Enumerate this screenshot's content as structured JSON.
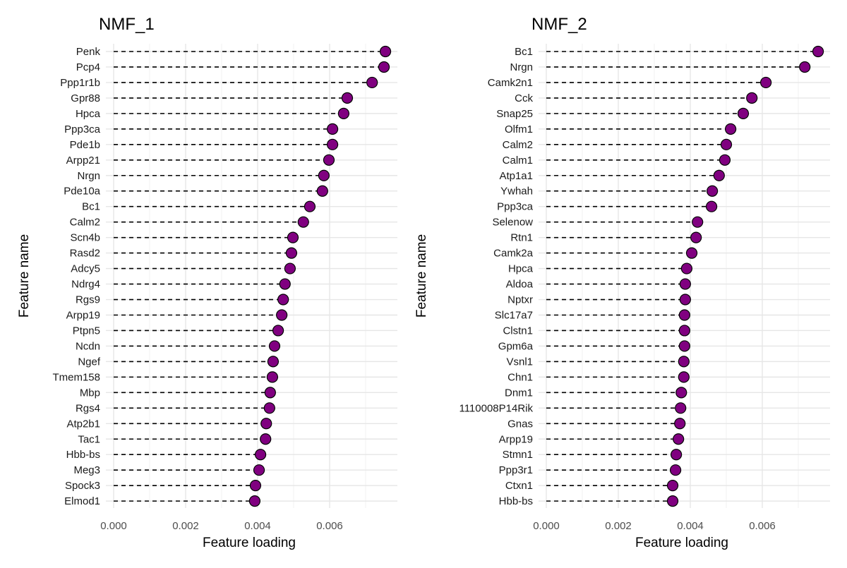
{
  "chart_data": [
    {
      "type": "scatter",
      "title": "NMF_1",
      "xlabel": "Feature loading",
      "ylabel": "Feature name",
      "xlim": [
        0,
        0.0078
      ],
      "xticks": [
        "0.000",
        "0.002",
        "0.004",
        "0.006"
      ],
      "grid": true,
      "point_color": "#800080",
      "categories": [
        "Penk",
        "Pcp4",
        "Ppp1r1b",
        "Gpr88",
        "Hpca",
        "Ppp3ca",
        "Pde1b",
        "Arpp21",
        "Nrgn",
        "Pde10a",
        "Bc1",
        "Calm2",
        "Scn4b",
        "Rasd2",
        "Adcy5",
        "Ndrg4",
        "Rgs9",
        "Arpp19",
        "Ptpn5",
        "Ncdn",
        "Ngef",
        "Tmem158",
        "Mbp",
        "Rgs4",
        "Atp2b1",
        "Tac1",
        "Hbb-bs",
        "Meg3",
        "Spock3",
        "Elmod1"
      ],
      "values": [
        0.00755,
        0.00751,
        0.00718,
        0.00649,
        0.00639,
        0.00608,
        0.00608,
        0.00598,
        0.00584,
        0.0058,
        0.00545,
        0.00527,
        0.00498,
        0.00494,
        0.0049,
        0.00476,
        0.00471,
        0.00467,
        0.00457,
        0.00447,
        0.00443,
        0.00441,
        0.00435,
        0.00433,
        0.00424,
        0.00422,
        0.00408,
        0.00404,
        0.00394,
        0.00392
      ]
    },
    {
      "type": "scatter",
      "title": "NMF_2",
      "xlabel": "Feature loading",
      "ylabel": "Feature name",
      "xlim": [
        0,
        0.0078
      ],
      "xticks": [
        "0.000",
        "0.002",
        "0.004",
        "0.006"
      ],
      "grid": true,
      "point_color": "#800080",
      "categories": [
        "Bc1",
        "Nrgn",
        "Camk2n1",
        "Cck",
        "Snap25",
        "Olfm1",
        "Calm2",
        "Calm1",
        "Atp1a1",
        "Ywhah",
        "Ppp3ca",
        "Selenow",
        "Rtn1",
        "Camk2a",
        "Hpca",
        "Aldoa",
        "Nptxr",
        "Slc17a7",
        "Clstn1",
        "Gpm6a",
        "Vsnl1",
        "Chn1",
        "Dnm1",
        "1110008P14Rik",
        "Gnas",
        "Arpp19",
        "Stmn1",
        "Ppp3r1",
        "Ctxn1",
        "Hbb-bs"
      ],
      "values": [
        0.00755,
        0.00718,
        0.0061,
        0.00571,
        0.00547,
        0.00512,
        0.005,
        0.00496,
        0.0048,
        0.00461,
        0.00459,
        0.0042,
        0.00416,
        0.00404,
        0.0039,
        0.00386,
        0.00386,
        0.00384,
        0.00384,
        0.00384,
        0.00382,
        0.00382,
        0.00375,
        0.00373,
        0.00371,
        0.00367,
        0.00361,
        0.00359,
        0.00351,
        0.00351
      ]
    }
  ]
}
